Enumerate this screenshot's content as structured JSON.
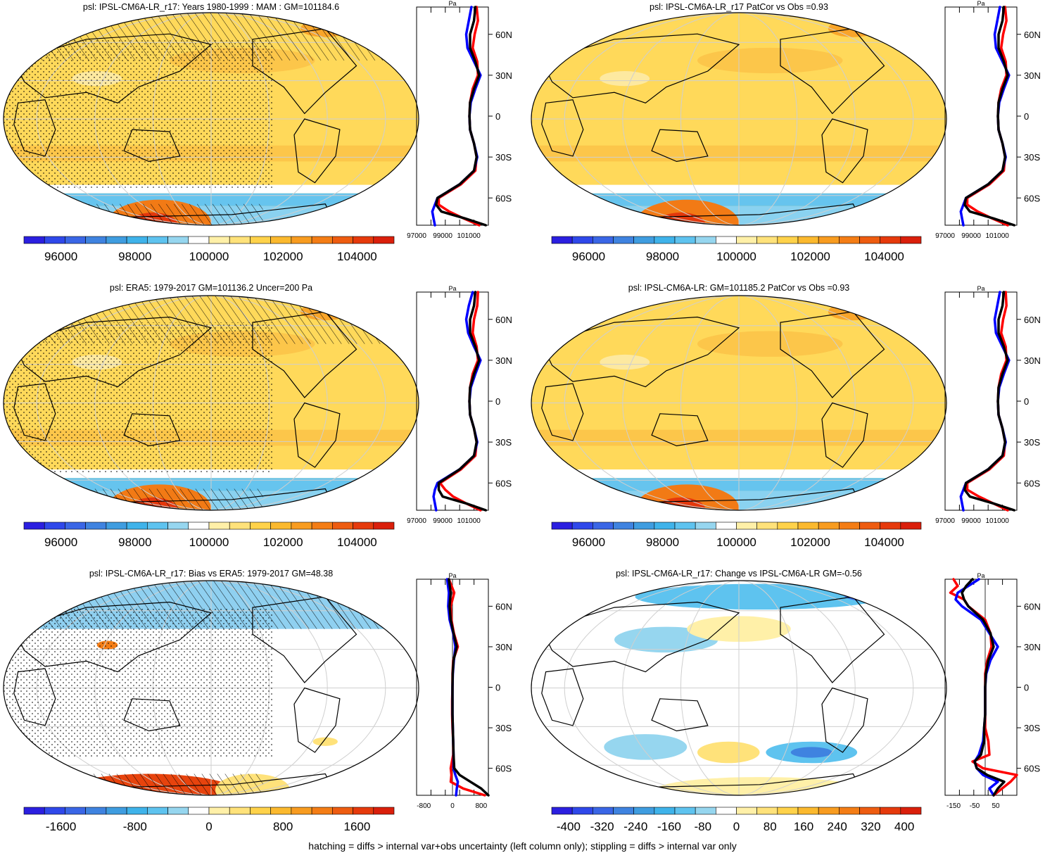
{
  "footer_note": "hatching = diffs > internal var+obs uncertainty (left column only); stippling = diffs > internal var only",
  "chart_data": [
    {
      "type": "heatmap",
      "title": "psl: IPSL-CM6A-LR_r17: Years 1980-1999 : MAM : GM=101184.6",
      "palette": "diverging-blue-white-red",
      "colorbar_ticks": [
        "96000",
        "98000",
        "100000",
        "102000",
        "104000"
      ],
      "colorbar_range": [
        95000,
        105000
      ],
      "overlays": [
        "hatching",
        "stippling"
      ],
      "profile": {
        "unit_label": "Pa",
        "x_ticks": [
          "97000",
          "99000",
          "101000"
        ],
        "lat_ticks": [
          "60N",
          "30N",
          "0",
          "30S",
          "60S"
        ],
        "xlim": [
          97000,
          102500
        ],
        "lat": [
          80,
          70,
          60,
          50,
          40,
          30,
          20,
          10,
          0,
          -10,
          -20,
          -30,
          -40,
          -50,
          -60,
          -65,
          -70,
          -75,
          -80
        ],
        "series": [
          {
            "color": "#ff0000",
            "values": [
              101600,
              101700,
              101450,
              101300,
              101650,
              101700,
              101300,
              101100,
              101050,
              101100,
              101400,
              101600,
              101500,
              100400,
              98700,
              98700,
              99500,
              100600,
              101800
            ]
          },
          {
            "color": "#0000ff",
            "values": [
              101200,
              101000,
              100800,
              100900,
              101400,
              101900,
              101500,
              101150,
              101050,
              101100,
              101400,
              101650,
              101400,
              100300,
              98600,
              98400,
              98200,
              98300,
              98400
            ]
          },
          {
            "color": "#000000",
            "values": [
              101500,
              101400,
              101100,
              101100,
              101500,
              101800,
              101400,
              101100,
              101050,
              101100,
              101400,
              101600,
              101400,
              100300,
              98600,
              98500,
              98900,
              100700,
              102300
            ]
          }
        ]
      }
    },
    {
      "type": "heatmap",
      "title": "psl: IPSL-CM6A-LR_r17 PatCor vs Obs =0.93",
      "palette": "diverging-blue-white-red",
      "colorbar_ticks": [
        "96000",
        "98000",
        "100000",
        "102000",
        "104000"
      ],
      "colorbar_range": [
        95000,
        105000
      ],
      "overlays": [],
      "profile": {
        "unit_label": "Pa",
        "x_ticks": [
          "97000",
          "99000",
          "101000"
        ],
        "lat_ticks": [
          "60N",
          "30N",
          "0",
          "30S",
          "60S"
        ],
        "xlim": [
          97000,
          102500
        ],
        "lat": [
          80,
          70,
          60,
          50,
          40,
          30,
          20,
          10,
          0,
          -10,
          -20,
          -30,
          -40,
          -50,
          -60,
          -65,
          -70,
          -75,
          -80
        ],
        "series": [
          {
            "color": "#ff0000",
            "values": [
              101600,
              101700,
              101450,
              101300,
              101650,
              101700,
              101300,
              101100,
              101050,
              101100,
              101400,
              101600,
              101500,
              100400,
              98700,
              98700,
              99500,
              100600,
              101800
            ]
          },
          {
            "color": "#0000ff",
            "values": [
              101200,
              101000,
              100800,
              100900,
              101400,
              101900,
              101500,
              101150,
              101050,
              101100,
              101400,
              101650,
              101400,
              100300,
              98600,
              98400,
              98200,
              98300,
              98400
            ]
          },
          {
            "color": "#000000",
            "values": [
              101500,
              101400,
              101100,
              101100,
              101500,
              101800,
              101400,
              101100,
              101050,
              101100,
              101400,
              101600,
              101400,
              100300,
              98600,
              98500,
              98900,
              100700,
              102300
            ]
          }
        ]
      }
    },
    {
      "type": "heatmap",
      "title": "psl: ERA5: 1979-2017 GM=101136.2 Uncer=200 Pa",
      "palette": "diverging-blue-white-red",
      "colorbar_ticks": [
        "96000",
        "98000",
        "100000",
        "102000",
        "104000"
      ],
      "colorbar_range": [
        95000,
        105000
      ],
      "overlays": [
        "hatching",
        "stippling"
      ],
      "profile": {
        "unit_label": "Pa",
        "x_ticks": [
          "97000",
          "99000",
          "101000"
        ],
        "lat_ticks": [
          "60N",
          "30N",
          "0",
          "30S",
          "60S"
        ],
        "xlim": [
          97000,
          102500
        ],
        "lat": [
          80,
          70,
          60,
          50,
          40,
          30,
          20,
          10,
          0,
          -10,
          -20,
          -30,
          -40,
          -50,
          -60,
          -65,
          -70,
          -75,
          -80
        ],
        "series": [
          {
            "color": "#ff0000",
            "values": [
              101700,
              101650,
              101400,
              101300,
              101600,
              101700,
              101300,
              101100,
              101050,
              101100,
              101400,
              101600,
              101500,
              100400,
              98800,
              99200,
              99800,
              100800,
              101900
            ]
          },
          {
            "color": "#0000ff",
            "values": [
              101300,
              101000,
              100800,
              100950,
              101400,
              101900,
              101500,
              101150,
              101050,
              101100,
              101400,
              101650,
              101400,
              100300,
              98600,
              98400,
              98300,
              98400,
              98500
            ]
          },
          {
            "color": "#000000",
            "values": [
              101500,
              101400,
              101100,
              101100,
              101500,
              101800,
              101400,
              101100,
              101050,
              101100,
              101400,
              101600,
              101400,
              100300,
              98700,
              98700,
              99000,
              100800,
              102300
            ]
          }
        ]
      }
    },
    {
      "type": "heatmap",
      "title": "psl: IPSL-CM6A-LR: GM=101185.2 PatCor vs Obs =0.93",
      "palette": "diverging-blue-white-red",
      "colorbar_ticks": [
        "96000",
        "98000",
        "100000",
        "102000",
        "104000"
      ],
      "colorbar_range": [
        95000,
        105000
      ],
      "overlays": [],
      "profile": {
        "unit_label": "Pa",
        "x_ticks": [
          "97000",
          "99000",
          "101000"
        ],
        "lat_ticks": [
          "60N",
          "30N",
          "0",
          "30S",
          "60S"
        ],
        "xlim": [
          97000,
          102500
        ],
        "lat": [
          80,
          70,
          60,
          50,
          40,
          30,
          20,
          10,
          0,
          -10,
          -20,
          -30,
          -40,
          -50,
          -60,
          -65,
          -70,
          -75,
          -80
        ],
        "series": [
          {
            "color": "#ff0000",
            "values": [
              101650,
              101700,
              101450,
              101300,
              101650,
              101700,
              101300,
              101100,
              101050,
              101100,
              101400,
              101600,
              101500,
              100400,
              98700,
              98700,
              99600,
              100700,
              101800
            ]
          },
          {
            "color": "#0000ff",
            "values": [
              101200,
              101000,
              100800,
              100900,
              101400,
              101900,
              101500,
              101150,
              101050,
              101100,
              101400,
              101650,
              101400,
              100300,
              98600,
              98400,
              98200,
              98300,
              98400
            ]
          },
          {
            "color": "#000000",
            "values": [
              101500,
              101400,
              101100,
              101100,
              101500,
              101800,
              101400,
              101100,
              101050,
              101100,
              101400,
              101600,
              101400,
              100300,
              98600,
              98500,
              98900,
              100700,
              102300
            ]
          }
        ]
      }
    },
    {
      "type": "heatmap",
      "title": "psl: IPSL-CM6A-LR_r17: Bias vs ERA5: 1979-2017 GM=48.38",
      "palette": "diverging-blue-white-red",
      "colorbar_ticks": [
        "-1600",
        "-800",
        "0",
        "800",
        "1600"
      ],
      "colorbar_range": [
        -2000,
        2000
      ],
      "overlays": [
        "hatching",
        "stippling"
      ],
      "profile": {
        "unit_label": "Pa",
        "x_ticks": [
          "-800",
          "0",
          "800"
        ],
        "lat_ticks": [
          "60N",
          "30N",
          "0",
          "30S",
          "60S"
        ],
        "xlim": [
          -1000,
          1000
        ],
        "lat": [
          80,
          70,
          60,
          50,
          40,
          30,
          20,
          10,
          0,
          -10,
          -20,
          -30,
          -40,
          -50,
          -60,
          -65,
          -70,
          -75,
          -80
        ],
        "series": [
          {
            "color": "#ff0000",
            "values": [
              -100,
              50,
              -50,
              -30,
              40,
              150,
              20,
              0,
              0,
              -10,
              -10,
              0,
              20,
              20,
              -50,
              -30,
              -50,
              300,
              900
            ]
          },
          {
            "color": "#0000ff",
            "values": [
              -150,
              -100,
              -120,
              -80,
              20,
              80,
              40,
              10,
              0,
              0,
              0,
              10,
              20,
              30,
              30,
              80,
              150,
              120,
              100
            ]
          },
          {
            "color": "#000000",
            "values": [
              -100,
              -50,
              -80,
              -50,
              30,
              120,
              30,
              5,
              0,
              0,
              0,
              10,
              20,
              30,
              50,
              200,
              500,
              800,
              1000
            ]
          }
        ]
      }
    },
    {
      "type": "heatmap",
      "title": "psl: IPSL-CM6A-LR_r17: Change vs IPSL-CM6A-LR GM=-0.56",
      "palette": "diverging-blue-white-red",
      "colorbar_ticks": [
        "-400",
        "-320",
        "-240",
        "-160",
        "-80",
        "0",
        "80",
        "160",
        "240",
        "320",
        "400"
      ],
      "colorbar_range": [
        -440,
        440
      ],
      "overlays": [],
      "profile": {
        "unit_label": "Pa",
        "x_ticks": [
          "-150",
          "-50",
          "50"
        ],
        "lat_ticks": [
          "60N",
          "30N",
          "0",
          "30S",
          "60S"
        ],
        "xlim": [
          -190,
          150
        ],
        "lat": [
          80,
          75,
          70,
          65,
          60,
          50,
          40,
          30,
          20,
          10,
          0,
          -10,
          -20,
          -30,
          -40,
          -50,
          -55,
          -60,
          -65,
          -70,
          -75,
          -80
        ],
        "series": [
          {
            "color": "#ff0000",
            "values": [
              -150,
              -130,
              -165,
              -100,
              -80,
              0,
              25,
              30,
              10,
              0,
              0,
              0,
              0,
              0,
              15,
              20,
              -60,
              -10,
              150,
              120,
              80,
              40
            ]
          },
          {
            "color": "#0000ff",
            "values": [
              -30,
              -80,
              -130,
              -140,
              -110,
              -20,
              20,
              60,
              25,
              5,
              0,
              0,
              0,
              -5,
              -10,
              -30,
              -50,
              -40,
              -10,
              60,
              20,
              40
            ]
          },
          {
            "color": "#000000",
            "values": [
              -60,
              -90,
              -110,
              -100,
              -80,
              -10,
              25,
              40,
              15,
              3,
              0,
              0,
              0,
              -5,
              -5,
              -20,
              -50,
              -40,
              10,
              90,
              60,
              40
            ]
          }
        ]
      }
    }
  ]
}
